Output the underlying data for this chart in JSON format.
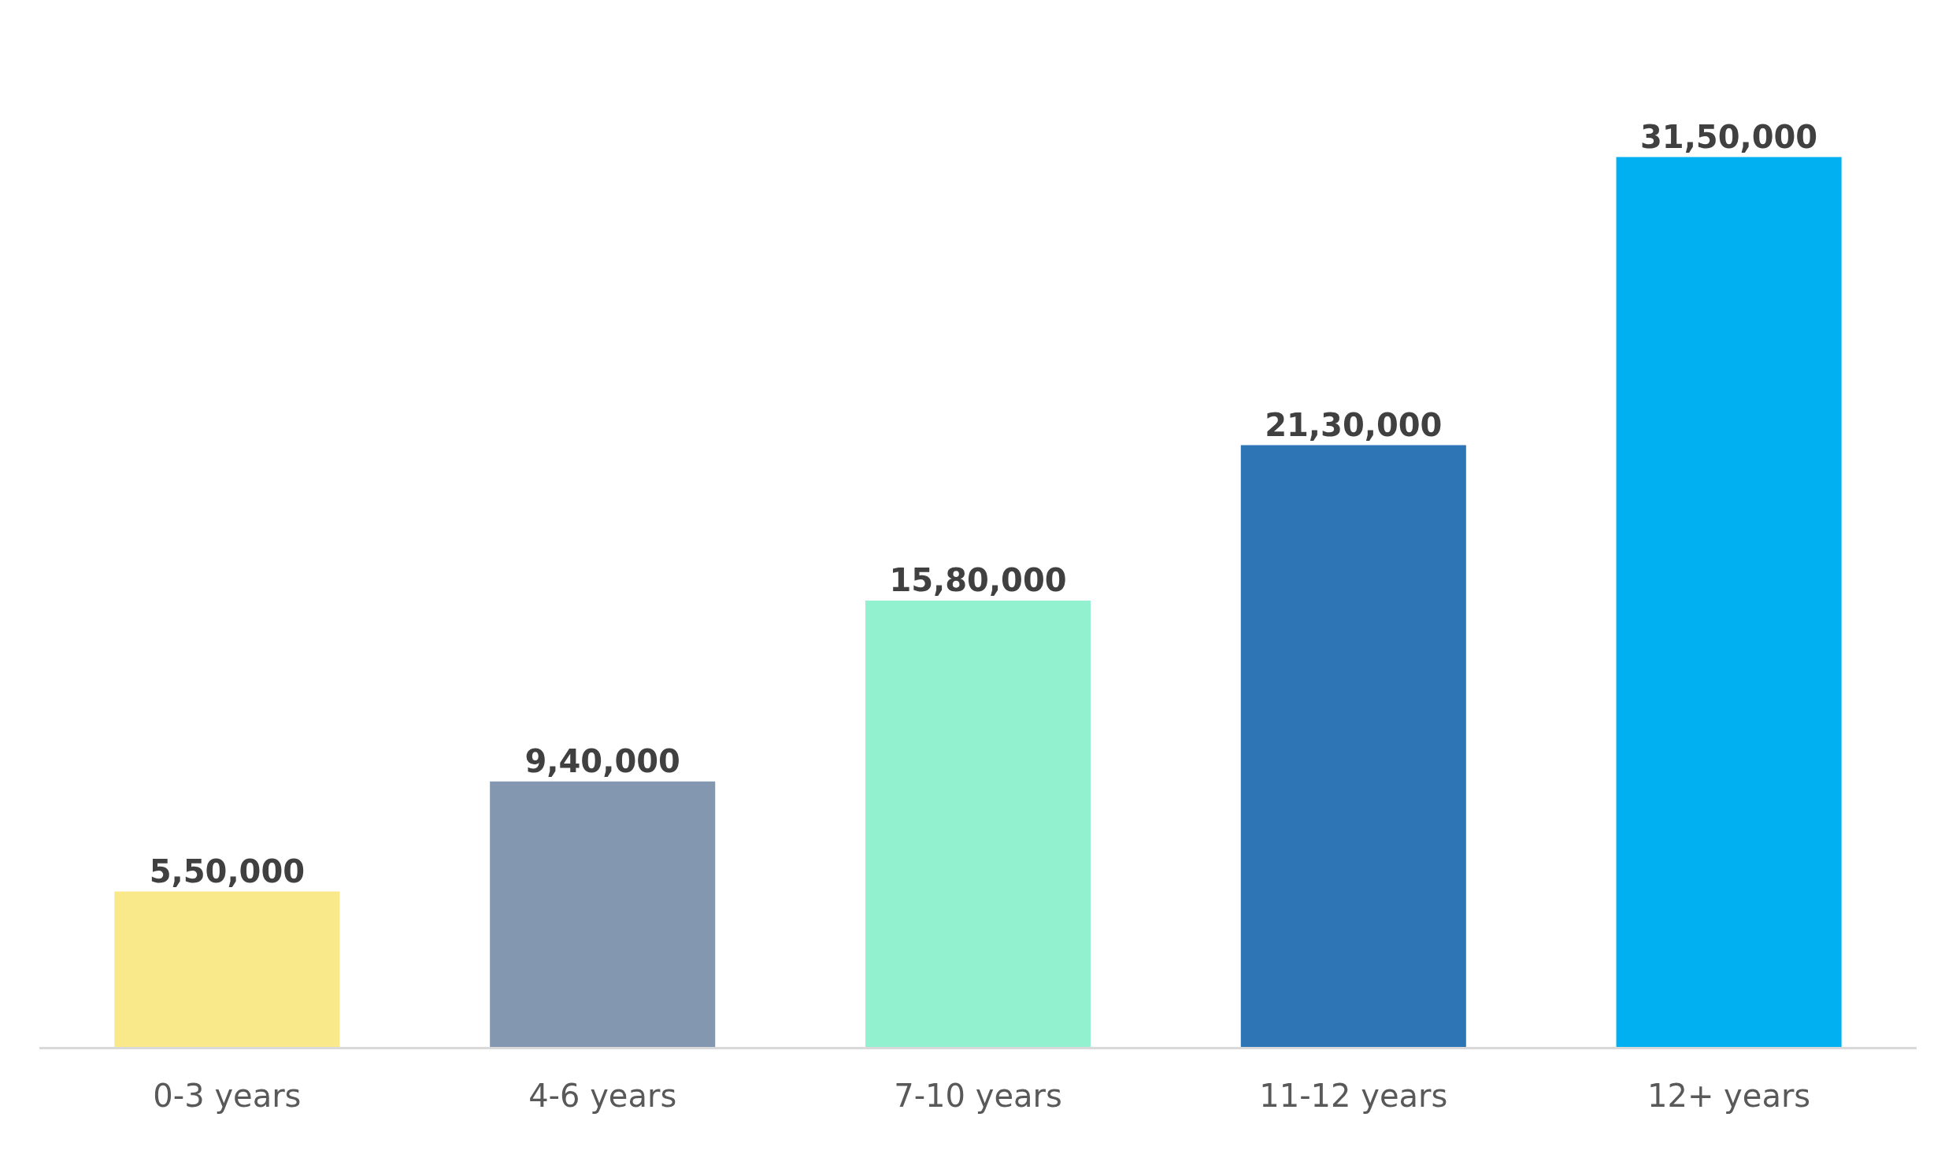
{
  "chart_data": {
    "type": "bar",
    "categories": [
      "0-3 years",
      "4-6 years",
      "7-10 years",
      "11-12 years",
      "12+ years"
    ],
    "values": [
      550000,
      940000,
      1580000,
      2130000,
      3150000
    ],
    "value_labels": [
      "5,50,000",
      "9,40,000",
      "15,80,000",
      "21,30,000",
      "31,50,000"
    ],
    "colors": [
      "#f9e98a",
      "#8497b0",
      "#92f2d0",
      "#2e75b6",
      "#00b0f0"
    ]
  }
}
